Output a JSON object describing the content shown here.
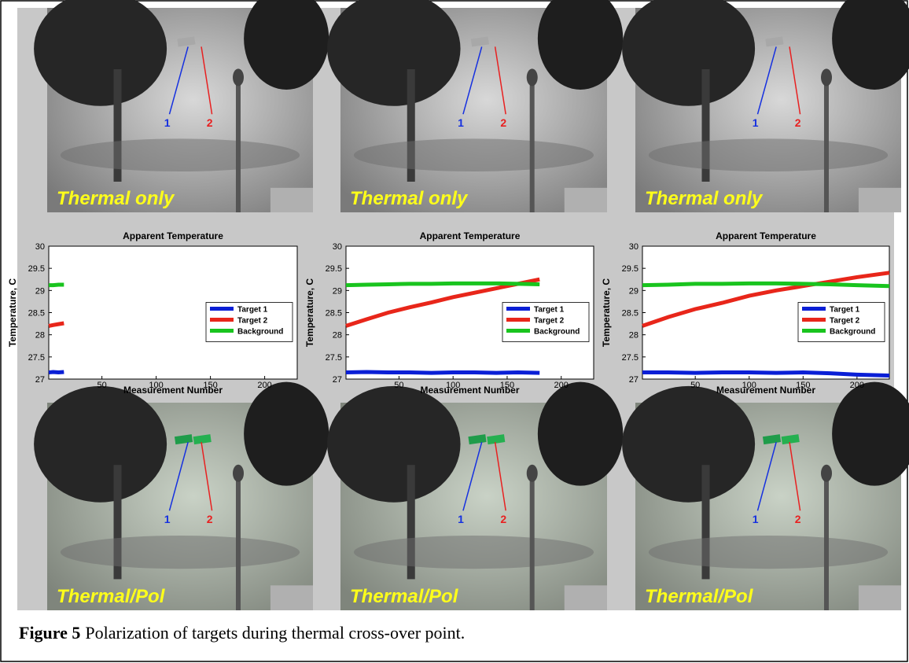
{
  "images_top": [
    {
      "caption": "Thermal only",
      "markers": [
        "1",
        "2"
      ]
    },
    {
      "caption": "Thermal only",
      "markers": [
        "1",
        "2"
      ]
    },
    {
      "caption": "Thermal only",
      "markers": [
        "1",
        "2"
      ]
    }
  ],
  "images_bottom": [
    {
      "caption": "Thermal/Pol",
      "markers": [
        "1",
        "2"
      ]
    },
    {
      "caption": "Thermal/Pol",
      "markers": [
        "1",
        "2"
      ]
    },
    {
      "caption": "Thermal/Pol",
      "markers": [
        "1",
        "2"
      ]
    }
  ],
  "chart_data": [
    {
      "type": "line",
      "title": "Apparent Temperature",
      "x_label": "Measurement Number",
      "y_label": "Temperature, C",
      "x": [
        1,
        5,
        10,
        15
      ],
      "series": [
        {
          "name": "Target 1",
          "color": "#0a1fd6",
          "values": [
            27.15,
            27.16,
            27.15,
            27.16
          ]
        },
        {
          "name": "Target 2",
          "color": "#e8261a",
          "values": [
            28.2,
            28.22,
            28.24,
            28.26
          ]
        },
        {
          "name": "Background",
          "color": "#19c41e",
          "values": [
            29.12,
            29.12,
            29.13,
            29.13
          ]
        }
      ],
      "xlim": [
        1,
        230
      ],
      "xticks": [
        50,
        100,
        150,
        200
      ],
      "ylim": [
        27,
        30
      ],
      "yticks": [
        27,
        27.5,
        28,
        28.5,
        29,
        29.5,
        30
      ],
      "legend": "center right",
      "grid": false
    },
    {
      "type": "line",
      "title": "Apparent Temperature",
      "x_label": "Measurement Number",
      "y_label": "Temperature, C",
      "x": [
        1,
        20,
        40,
        60,
        80,
        100,
        120,
        140,
        160,
        180
      ],
      "series": [
        {
          "name": "Target 1",
          "color": "#0a1fd6",
          "values": [
            27.15,
            27.16,
            27.15,
            27.15,
            27.14,
            27.15,
            27.15,
            27.14,
            27.15,
            27.14
          ]
        },
        {
          "name": "Target 2",
          "color": "#e8261a",
          "values": [
            28.2,
            28.35,
            28.5,
            28.62,
            28.73,
            28.85,
            28.95,
            29.05,
            29.15,
            29.25
          ]
        },
        {
          "name": "Background",
          "color": "#19c41e",
          "values": [
            29.12,
            29.13,
            29.14,
            29.15,
            29.15,
            29.16,
            29.16,
            29.16,
            29.15,
            29.14
          ]
        }
      ],
      "xlim": [
        1,
        230
      ],
      "xticks": [
        50,
        100,
        150,
        200
      ],
      "ylim": [
        27,
        30
      ],
      "yticks": [
        27,
        27.5,
        28,
        28.5,
        29,
        29.5,
        30
      ],
      "legend": "center right",
      "grid": false
    },
    {
      "type": "line",
      "title": "Apparent Temperature",
      "x_label": "Measurement Number",
      "y_label": "Temperature, C",
      "x": [
        1,
        25,
        50,
        75,
        100,
        125,
        150,
        175,
        200,
        230
      ],
      "series": [
        {
          "name": "Target 1",
          "color": "#0a1fd6",
          "values": [
            27.15,
            27.15,
            27.14,
            27.15,
            27.15,
            27.14,
            27.15,
            27.13,
            27.1,
            27.08
          ]
        },
        {
          "name": "Target 2",
          "color": "#e8261a",
          "values": [
            28.2,
            28.4,
            28.58,
            28.72,
            28.88,
            29.0,
            29.1,
            29.2,
            29.3,
            29.4
          ]
        },
        {
          "name": "Background",
          "color": "#19c41e",
          "values": [
            29.12,
            29.13,
            29.15,
            29.15,
            29.16,
            29.16,
            29.15,
            29.14,
            29.12,
            29.1
          ]
        }
      ],
      "xlim": [
        1,
        230
      ],
      "xticks": [
        50,
        100,
        150,
        200
      ],
      "ylim": [
        27,
        30
      ],
      "yticks": [
        27,
        27.5,
        28,
        28.5,
        29,
        29.5,
        30
      ],
      "legend": "center right",
      "grid": false
    }
  ],
  "caption": {
    "label": "Figure 5",
    "text": "Polarization of targets during thermal cross-over point."
  }
}
